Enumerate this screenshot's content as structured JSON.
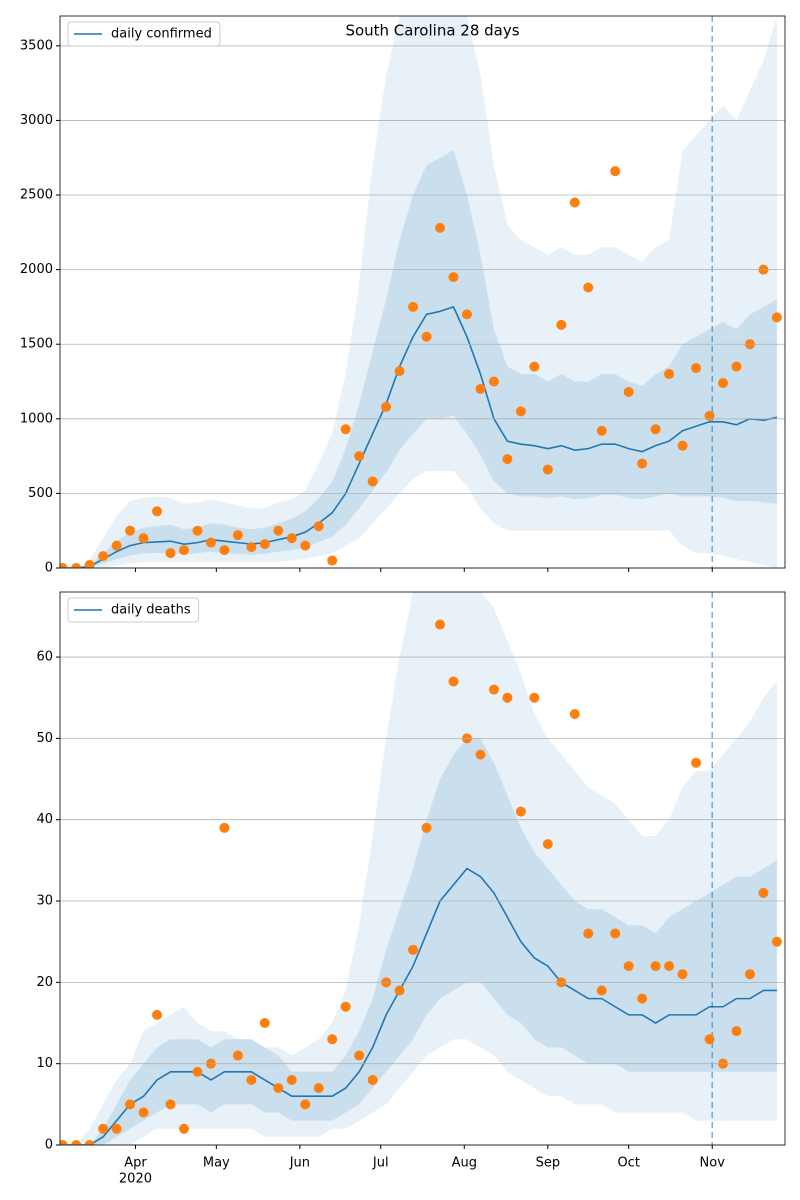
{
  "chart_data": [
    {
      "type": "line",
      "title": "South Carolina 28 days",
      "x": [
        "2020-03-05",
        "2020-03-10",
        "2020-03-15",
        "2020-03-20",
        "2020-03-25",
        "2020-03-30",
        "2020-04-04",
        "2020-04-09",
        "2020-04-14",
        "2020-04-19",
        "2020-04-24",
        "2020-04-29",
        "2020-05-04",
        "2020-05-09",
        "2020-05-14",
        "2020-05-19",
        "2020-05-24",
        "2020-05-29",
        "2020-06-03",
        "2020-06-08",
        "2020-06-13",
        "2020-06-18",
        "2020-06-23",
        "2020-06-28",
        "2020-07-03",
        "2020-07-08",
        "2020-07-13",
        "2020-07-18",
        "2020-07-23",
        "2020-07-28",
        "2020-08-02",
        "2020-08-07",
        "2020-08-12",
        "2020-08-17",
        "2020-08-22",
        "2020-08-27",
        "2020-09-01",
        "2020-09-06",
        "2020-09-11",
        "2020-09-16",
        "2020-09-21",
        "2020-09-26",
        "2020-10-01",
        "2020-10-06",
        "2020-10-11",
        "2020-10-16",
        "2020-10-21",
        "2020-10-26",
        "2020-10-31",
        "2020-11-05",
        "2020-11-10",
        "2020-11-15",
        "2020-11-20",
        "2020-11-25"
      ],
      "series": [
        {
          "name": "daily confirmed",
          "color": "#1f77b4",
          "values": [
            0,
            0,
            10,
            60,
            110,
            150,
            170,
            175,
            180,
            160,
            170,
            190,
            180,
            170,
            160,
            170,
            190,
            210,
            240,
            300,
            370,
            500,
            700,
            900,
            1100,
            1350,
            1550,
            1700,
            1720,
            1750,
            1550,
            1300,
            1000,
            850,
            830,
            820,
            800,
            820,
            790,
            800,
            830,
            830,
            800,
            780,
            820,
            850,
            920,
            950,
            980,
            980,
            960,
            1000,
            990,
            1010
          ]
        }
      ],
      "observed": {
        "color": "#ff7f0e",
        "values": [
          0,
          0,
          20,
          80,
          150,
          250,
          200,
          380,
          100,
          120,
          250,
          170,
          120,
          220,
          140,
          160,
          250,
          200,
          150,
          280,
          50,
          930,
          750,
          580,
          1080,
          1320,
          1750,
          1550,
          2280,
          1950,
          1700,
          1200,
          1250,
          730,
          1050,
          1350,
          660,
          1630,
          2450,
          1880,
          920,
          2660,
          1180,
          700,
          930,
          1300,
          820,
          1340,
          1020,
          1240,
          1350,
          1500,
          2000,
          1680
        ]
      },
      "bands": [
        {
          "color": "#1f77b4",
          "opacity": 0.1,
          "lower": [
            0,
            0,
            0,
            5,
            15,
            30,
            40,
            40,
            40,
            40,
            40,
            40,
            40,
            40,
            40,
            40,
            40,
            50,
            60,
            80,
            100,
            150,
            200,
            300,
            400,
            500,
            600,
            650,
            650,
            650,
            550,
            400,
            300,
            250,
            250,
            250,
            250,
            250,
            250,
            250,
            250,
            250,
            250,
            250,
            250,
            250,
            150,
            100,
            100,
            80,
            60,
            40,
            20,
            0
          ],
          "upper": [
            0,
            0,
            50,
            200,
            350,
            450,
            470,
            480,
            470,
            430,
            440,
            460,
            440,
            420,
            400,
            400,
            440,
            460,
            520,
            700,
            900,
            1300,
            1900,
            2700,
            3300,
            3700,
            3700,
            3700,
            3700,
            3700,
            3700,
            3300,
            2700,
            2300,
            2200,
            2150,
            2100,
            2150,
            2100,
            2100,
            2150,
            2150,
            2100,
            2050,
            2150,
            2200,
            2800,
            2900,
            3000,
            3100,
            3000,
            3200,
            3400,
            3700
          ]
        },
        {
          "color": "#1f77b4",
          "opacity": 0.15,
          "lower": [
            0,
            0,
            2,
            30,
            60,
            85,
            100,
            100,
            105,
            90,
            100,
            110,
            100,
            95,
            90,
            95,
            110,
            120,
            140,
            175,
            210,
            290,
            400,
            520,
            640,
            790,
            900,
            1000,
            1000,
            1020,
            900,
            760,
            580,
            500,
            480,
            480,
            470,
            480,
            460,
            470,
            490,
            490,
            470,
            460,
            480,
            500,
            480,
            480,
            480,
            470,
            450,
            450,
            440,
            430
          ],
          "upper": [
            0,
            0,
            20,
            100,
            180,
            240,
            270,
            280,
            290,
            260,
            270,
            300,
            290,
            270,
            260,
            270,
            300,
            330,
            380,
            470,
            580,
            800,
            1100,
            1450,
            1800,
            2200,
            2500,
            2700,
            2750,
            2800,
            2500,
            2100,
            1600,
            1350,
            1300,
            1300,
            1250,
            1300,
            1250,
            1250,
            1300,
            1300,
            1250,
            1220,
            1300,
            1350,
            1500,
            1550,
            1600,
            1650,
            1600,
            1700,
            1750,
            1800
          ]
        }
      ],
      "vline": {
        "x": "2020-11-01",
        "color": "#1f77b4"
      },
      "xlim": [
        "2020-03-04",
        "2020-11-28"
      ],
      "ylim": [
        0,
        3700
      ],
      "yticks": [
        0,
        500,
        1000,
        1500,
        2000,
        2500,
        3000,
        3500
      ],
      "grid": "y",
      "legend": "upper left"
    },
    {
      "type": "line",
      "x": [
        "2020-03-05",
        "2020-03-10",
        "2020-03-15",
        "2020-03-20",
        "2020-03-25",
        "2020-03-30",
        "2020-04-04",
        "2020-04-09",
        "2020-04-14",
        "2020-04-19",
        "2020-04-24",
        "2020-04-29",
        "2020-05-04",
        "2020-05-09",
        "2020-05-14",
        "2020-05-19",
        "2020-05-24",
        "2020-05-29",
        "2020-06-03",
        "2020-06-08",
        "2020-06-13",
        "2020-06-18",
        "2020-06-23",
        "2020-06-28",
        "2020-07-03",
        "2020-07-08",
        "2020-07-13",
        "2020-07-18",
        "2020-07-23",
        "2020-07-28",
        "2020-08-02",
        "2020-08-07",
        "2020-08-12",
        "2020-08-17",
        "2020-08-22",
        "2020-08-27",
        "2020-09-01",
        "2020-09-06",
        "2020-09-11",
        "2020-09-16",
        "2020-09-21",
        "2020-09-26",
        "2020-10-01",
        "2020-10-06",
        "2020-10-11",
        "2020-10-16",
        "2020-10-21",
        "2020-10-26",
        "2020-10-31",
        "2020-11-05",
        "2020-11-10",
        "2020-11-15",
        "2020-11-20",
        "2020-11-25"
      ],
      "series": [
        {
          "name": "daily deaths",
          "color": "#1f77b4",
          "values": [
            0,
            0,
            0,
            1,
            3,
            5,
            6,
            8,
            9,
            9,
            9,
            8,
            9,
            9,
            9,
            8,
            7,
            6,
            6,
            6,
            6,
            7,
            9,
            12,
            16,
            19,
            22,
            26,
            30,
            32,
            34,
            33,
            31,
            28,
            25,
            23,
            22,
            20,
            19,
            18,
            18,
            17,
            16,
            16,
            15,
            16,
            16,
            16,
            17,
            17,
            18,
            18,
            19,
            19
          ]
        }
      ],
      "observed": {
        "color": "#ff7f0e",
        "values": [
          0,
          0,
          0,
          2,
          2,
          5,
          4,
          16,
          5,
          2,
          9,
          10,
          39,
          11,
          8,
          15,
          7,
          8,
          5,
          7,
          13,
          17,
          11,
          8,
          20,
          19,
          24,
          39,
          64,
          57,
          50,
          48,
          56,
          55,
          41,
          55,
          37,
          20,
          53,
          26,
          19,
          26,
          22,
          18,
          22,
          22,
          21,
          47,
          13,
          10,
          14,
          21,
          31,
          25
        ]
      },
      "bands": [
        {
          "color": "#1f77b4",
          "opacity": 0.1,
          "lower": [
            0,
            0,
            0,
            0,
            0,
            0,
            1,
            2,
            2,
            2,
            2,
            2,
            2,
            2,
            2,
            1,
            1,
            1,
            1,
            1,
            2,
            2,
            3,
            4,
            5,
            7,
            9,
            11,
            12,
            13,
            13,
            12,
            11,
            9,
            8,
            7,
            6,
            6,
            5,
            5,
            5,
            4,
            4,
            4,
            4,
            4,
            4,
            3,
            3,
            3,
            3,
            3,
            3,
            3
          ],
          "upper": [
            0,
            0,
            2,
            5,
            8,
            10,
            14,
            15,
            16,
            17,
            15,
            14,
            14,
            13,
            13,
            12,
            12,
            11,
            12,
            13,
            15,
            19,
            27,
            38,
            50,
            60,
            68,
            68,
            68,
            68,
            68,
            68,
            66,
            62,
            58,
            53,
            50,
            48,
            46,
            44,
            43,
            42,
            40,
            38,
            38,
            40,
            44,
            46,
            46,
            48,
            50,
            52,
            55,
            57
          ]
        },
        {
          "color": "#1f77b4",
          "opacity": 0.15,
          "lower": [
            0,
            0,
            0,
            0,
            1,
            2,
            3,
            4,
            5,
            5,
            5,
            4,
            5,
            5,
            5,
            4,
            4,
            3,
            3,
            3,
            3,
            4,
            5,
            7,
            9,
            11,
            13,
            16,
            18,
            19,
            20,
            20,
            18,
            16,
            15,
            13,
            12,
            12,
            11,
            10,
            10,
            10,
            9,
            9,
            9,
            9,
            9,
            9,
            9,
            9,
            9,
            9,
            9,
            9
          ],
          "upper": [
            0,
            0,
            0,
            2,
            5,
            8,
            10,
            12,
            13,
            13,
            13,
            12,
            13,
            13,
            13,
            12,
            11,
            9,
            9,
            9,
            9,
            11,
            14,
            18,
            24,
            29,
            34,
            40,
            45,
            48,
            50,
            50,
            47,
            43,
            39,
            36,
            34,
            32,
            30,
            29,
            29,
            28,
            27,
            27,
            26,
            28,
            29,
            30,
            31,
            32,
            33,
            33,
            34,
            35
          ]
        }
      ],
      "vline": {
        "x": "2020-11-01",
        "color": "#1f77b4"
      },
      "xlim": [
        "2020-03-04",
        "2020-11-28"
      ],
      "xticks": [
        {
          "value": "2020-04-01",
          "label": "Apr"
        },
        {
          "value": "2020-05-01",
          "label": "May"
        },
        {
          "value": "2020-06-01",
          "label": "Jun"
        },
        {
          "value": "2020-07-01",
          "label": "Jul"
        },
        {
          "value": "2020-08-01",
          "label": "Aug"
        },
        {
          "value": "2020-09-01",
          "label": "Sep"
        },
        {
          "value": "2020-10-01",
          "label": "Oct"
        },
        {
          "value": "2020-11-01",
          "label": "Nov"
        }
      ],
      "xtick_sublabel": "2020",
      "ylim": [
        0,
        68
      ],
      "yticks": [
        0,
        10,
        20,
        30,
        40,
        50,
        60
      ],
      "grid": "y",
      "legend": "upper left"
    }
  ]
}
